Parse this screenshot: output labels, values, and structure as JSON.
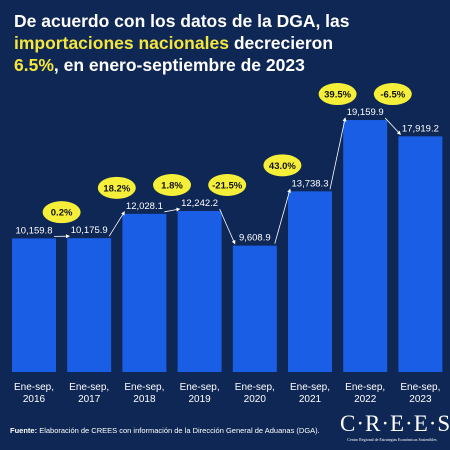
{
  "header": {
    "title_part1": "De acuerdo con los datos de la DGA, las",
    "title_highlight1": "importaciones nacionales",
    "title_part2": "decrecieron",
    "title_highlight2": "6.5%",
    "title_part3": ", en enero-septiembre de 2023"
  },
  "chart_data": {
    "type": "bar",
    "categories": [
      "Ene-sep,\n2016",
      "Ene-sep,\n2017",
      "Ene-sep,\n2018",
      "Ene-sep,\n2019",
      "Ene-sep,\n2020",
      "Ene-sep,\n2021",
      "Ene-sep,\n2022",
      "Ene-sep,\n2023"
    ],
    "values": [
      10159.8,
      10175.9,
      12028.1,
      12242.2,
      9608.9,
      13738.3,
      19159.9,
      17919.2
    ],
    "value_labels": [
      "10,159.8",
      "10,175.9",
      "12,028.1",
      "12,242.2",
      "9,608.9",
      "13,738.3",
      "19,159.9",
      "17,919.2"
    ],
    "growth_labels": [
      "0.2%",
      "18.2%",
      "1.8%",
      "-21.5%",
      "43.0%",
      "39.5%",
      "-6.5%"
    ],
    "ylim": [
      0,
      20000
    ],
    "bar_color": "#1a5ee6",
    "badge_color": "#f5ef3a"
  },
  "footer": {
    "source_label": "Fuente:",
    "source_text": "Elaboración de CREES con información de la Dirección General de Aduanas (DGA)."
  },
  "logo": {
    "name": "C·R·E·E·S",
    "subtitle": "Centro Regional de Estrategias Económicas Sostenibles"
  }
}
